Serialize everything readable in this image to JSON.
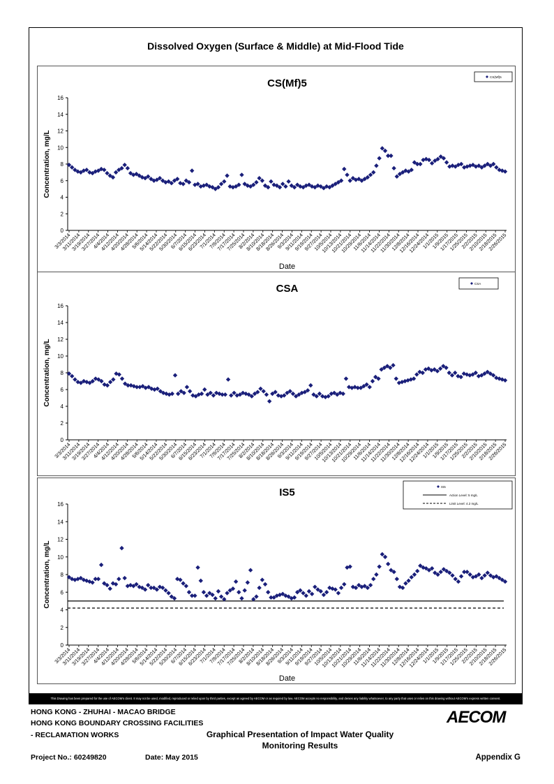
{
  "page_title": "Dissolved Oxygen (Surface & Middle) at Mid-Flood Tide",
  "disclaimer": "This Drawing has been prepared for the use of AECOM's client. It may not be used, modified, reproduced or relied upon by third parties, except as agreed by AECOM or as required by law. AECOM accepts no responsibility, and denies any liability whatsoever, to any party that uses or relies on this drawing without AECOM's express written consent.",
  "footer": {
    "project_line1": "HONG KONG - ZHUHAI - MACAO BRIDGE",
    "project_line2": "HONG KONG BOUNDARY CROSSING FACILITIES",
    "project_line3": "- RECLAMATION WORKS",
    "title_line1": "Graphical Presentation of Impact Water Quality",
    "title_line2": "Monitoring Results",
    "project_no": "Project No.: 60249820",
    "date": "Date: May 2015",
    "appendix": "Appendix G",
    "logo": "AECOM"
  },
  "colors": {
    "series": "#1a1f7a",
    "axis": "#000000"
  },
  "chart_data": [
    {
      "type": "scatter",
      "title": "CS(Mf)5",
      "xlabel": "Date",
      "ylabel": "Concentration, mg/L",
      "ylim": [
        0,
        16
      ],
      "yticks": [
        0,
        2,
        4,
        6,
        8,
        10,
        12,
        14,
        16
      ],
      "xticks": [
        "3/3/2014",
        "3/11/2014",
        "3/19/2014",
        "3/27/2014",
        "4/4/2014",
        "4/12/2014",
        "4/20/2014",
        "4/28/2014",
        "5/6/2014",
        "5/14/2014",
        "5/22/2014",
        "5/30/2014",
        "6/7/2014",
        "6/15/2014",
        "6/23/2014",
        "7/1/2014",
        "7/9/2014",
        "7/17/2014",
        "7/25/2014",
        "8/2/2014",
        "8/10/2014",
        "8/18/2014",
        "8/26/2014",
        "9/3/2014",
        "9/11/2014",
        "9/19/2014",
        "9/27/2014",
        "10/5/2014",
        "10/13/2014",
        "10/21/2014",
        "10/29/2014",
        "11/6/2014",
        "11/14/2014",
        "11/22/2014",
        "11/30/2014",
        "12/8/2014",
        "12/16/2014",
        "12/24/2014",
        "1/1/2015",
        "1/9/2015",
        "1/17/2015",
        "1/25/2015",
        "2/2/2015",
        "2/10/2015",
        "2/18/2015",
        "2/26/2015"
      ],
      "legend": [
        {
          "label": "CS(Mf)5",
          "marker": "diamond"
        }
      ],
      "legend_position": "top-right",
      "series": [
        {
          "name": "CS(Mf)5",
          "values": [
            7.9,
            7.6,
            7.3,
            7.1,
            7.0,
            7.2,
            7.3,
            7.0,
            6.9,
            7.1,
            7.2,
            7.4,
            7.3,
            6.9,
            6.6,
            6.4,
            7.0,
            7.3,
            7.5,
            7.9,
            7.5,
            6.9,
            6.7,
            6.8,
            6.6,
            6.4,
            6.3,
            6.5,
            6.2,
            6.0,
            6.1,
            6.3,
            6.0,
            5.8,
            5.9,
            5.7,
            6.0,
            6.2,
            5.7,
            5.6,
            6.0,
            5.8,
            7.2,
            5.5,
            5.6,
            5.3,
            5.4,
            5.5,
            5.3,
            5.2,
            5.0,
            5.2,
            5.6,
            5.9,
            6.6,
            5.3,
            5.2,
            5.3,
            5.5,
            6.7,
            5.6,
            5.4,
            5.3,
            5.5,
            5.8,
            6.3,
            6.0,
            5.4,
            5.2,
            5.9,
            5.5,
            5.4,
            5.2,
            5.6,
            5.3,
            5.9,
            5.4,
            5.2,
            5.5,
            5.3,
            5.2,
            5.4,
            5.5,
            5.3,
            5.2,
            5.4,
            5.3,
            5.1,
            5.3,
            5.2,
            5.4,
            5.6,
            5.8,
            6.0,
            7.4,
            6.7,
            6.0,
            6.3,
            6.1,
            6.2,
            6.0,
            6.2,
            6.4,
            6.7,
            7.0,
            7.8,
            8.7,
            9.9,
            9.6,
            9.0,
            9.0,
            7.5,
            6.5,
            6.8,
            7.0,
            7.2,
            7.1,
            7.3,
            8.2,
            8.0,
            8.0,
            8.5,
            8.6,
            8.5,
            8.1,
            8.4,
            8.6,
            8.9,
            8.7,
            8.2,
            7.7,
            7.8,
            7.7,
            7.9,
            8.0,
            7.6,
            7.7,
            7.8,
            7.9,
            7.7,
            7.8,
            7.6,
            7.8,
            8.0,
            7.8,
            8.0,
            7.6,
            7.3,
            7.2,
            7.1
          ]
        }
      ]
    },
    {
      "type": "scatter",
      "title": "CSA",
      "xlabel": "",
      "ylabel": "Concentration, mg/L",
      "ylim": [
        0,
        16
      ],
      "yticks": [
        0,
        2,
        4,
        6,
        8,
        10,
        12,
        14,
        16
      ],
      "xticks": [
        "3/3/2014",
        "3/11/2014",
        "3/19/2014",
        "3/27/2014",
        "4/4/2014",
        "4/12/2014",
        "4/20/2014",
        "4/28/2014",
        "5/6/2014",
        "5/14/2014",
        "5/22/2014",
        "5/30/2014",
        "6/7/2014",
        "6/15/2014",
        "6/23/2014",
        "7/1/2014",
        "7/9/2014",
        "7/17/2014",
        "7/25/2014",
        "8/2/2014",
        "8/10/2014",
        "8/18/2014",
        "8/26/2014",
        "9/3/2014",
        "9/11/2014",
        "9/19/2014",
        "9/27/2014",
        "10/5/2014",
        "10/13/2014",
        "10/21/2014",
        "10/29/2014",
        "11/6/2014",
        "11/14/2014",
        "11/22/2014",
        "11/30/2014",
        "12/8/2014",
        "12/16/2014",
        "12/24/2014",
        "1/1/2015",
        "1/9/2015",
        "1/17/2015",
        "1/25/2015",
        "2/2/2015",
        "2/10/2015",
        "2/18/2015",
        "2/26/2015"
      ],
      "legend": [
        {
          "label": "CSA",
          "marker": "diamond"
        }
      ],
      "legend_position": "top-right",
      "series": [
        {
          "name": "CSA",
          "values": [
            7.9,
            7.6,
            7.2,
            6.9,
            6.8,
            7.0,
            6.9,
            6.8,
            7.0,
            7.3,
            7.2,
            7.0,
            6.6,
            6.5,
            6.9,
            7.2,
            7.9,
            7.8,
            7.3,
            6.7,
            6.5,
            6.5,
            6.4,
            6.3,
            6.3,
            6.4,
            6.2,
            6.3,
            6.1,
            6.0,
            6.1,
            5.8,
            5.6,
            5.5,
            5.4,
            5.5,
            7.7,
            5.5,
            5.8,
            5.6,
            6.3,
            5.8,
            5.3,
            5.2,
            5.4,
            5.5,
            6.0,
            5.4,
            5.6,
            5.3,
            5.6,
            5.5,
            5.4,
            5.4,
            7.2,
            5.3,
            5.6,
            5.3,
            5.4,
            5.6,
            5.5,
            5.4,
            5.2,
            5.5,
            5.7,
            6.1,
            5.8,
            5.4,
            4.6,
            5.5,
            5.7,
            5.3,
            5.2,
            5.3,
            5.6,
            5.8,
            5.5,
            5.2,
            5.4,
            5.6,
            5.7,
            5.9,
            6.5,
            5.4,
            5.2,
            5.5,
            5.2,
            5.1,
            5.2,
            5.5,
            5.6,
            5.4,
            5.6,
            5.5,
            7.3,
            6.3,
            6.2,
            6.3,
            6.2,
            6.2,
            6.4,
            6.6,
            6.3,
            7.0,
            7.5,
            7.3,
            8.4,
            8.6,
            8.8,
            8.6,
            8.9,
            7.3,
            6.8,
            6.9,
            7.0,
            7.1,
            7.2,
            7.3,
            7.8,
            8.1,
            8.0,
            8.4,
            8.5,
            8.3,
            8.4,
            8.2,
            8.5,
            8.8,
            8.6,
            8.0,
            7.7,
            8.0,
            7.6,
            7.5,
            7.9,
            7.8,
            7.7,
            7.8,
            8.0,
            7.6,
            7.7,
            7.9,
            8.1,
            7.9,
            7.7,
            7.4,
            7.3,
            7.2,
            7.1
          ]
        }
      ]
    },
    {
      "type": "scatter",
      "title": "IS5",
      "xlabel": "Date",
      "ylabel": "Concentration, mg/L",
      "ylim": [
        0,
        16
      ],
      "yticks": [
        0,
        2,
        4,
        6,
        8,
        10,
        12,
        14,
        16
      ],
      "xticks": [
        "3/3/2014",
        "3/11/2014",
        "3/19/2014",
        "3/27/2014",
        "4/4/2014",
        "4/12/2014",
        "4/20/2014",
        "4/28/2014",
        "5/6/2014",
        "5/14/2014",
        "5/22/2014",
        "5/30/2014",
        "6/7/2014",
        "6/15/2014",
        "6/23/2014",
        "7/1/2014",
        "7/9/2014",
        "7/17/2014",
        "7/25/2014",
        "8/2/2014",
        "8/10/2014",
        "8/18/2014",
        "8/26/2014",
        "9/3/2014",
        "9/11/2014",
        "9/19/2014",
        "9/27/2014",
        "10/5/2014",
        "10/13/2014",
        "10/21/2014",
        "10/29/2014",
        "11/6/2014",
        "11/14/2014",
        "11/22/2014",
        "11/30/2014",
        "12/8/2014",
        "12/16/2014",
        "12/24/2014",
        "1/1/2015",
        "1/9/2015",
        "1/17/2015",
        "1/25/2015",
        "2/2/2015",
        "2/10/2015",
        "2/18/2015",
        "2/26/2015"
      ],
      "legend": [
        {
          "label": "IS5",
          "marker": "diamond"
        },
        {
          "label": "Action Level: 5 mg/L",
          "marker": "solid-line"
        },
        {
          "label": "Limit Level: 4.2 mg/L",
          "marker": "dashed-line"
        }
      ],
      "legend_position": "top-right",
      "reference_lines": [
        {
          "label": "Action Level: 5 mg/L",
          "value": 5,
          "style": "solid"
        },
        {
          "label": "Limit Level: 4.2 mg/L",
          "value": 4.2,
          "style": "dashed"
        }
      ],
      "series": [
        {
          "name": "IS5",
          "values": [
            7.7,
            7.5,
            7.4,
            7.5,
            7.6,
            7.4,
            7.3,
            7.2,
            7.1,
            7.5,
            7.5,
            9.1,
            7.0,
            6.8,
            6.4,
            7.0,
            6.9,
            7.5,
            11.0,
            7.6,
            6.7,
            6.8,
            6.7,
            6.9,
            6.6,
            6.5,
            6.3,
            6.8,
            6.5,
            6.5,
            6.3,
            6.6,
            6.5,
            6.2,
            5.9,
            5.5,
            5.3,
            7.5,
            7.4,
            7.0,
            6.7,
            6.0,
            5.6,
            5.6,
            8.8,
            7.3,
            6.0,
            5.6,
            5.9,
            5.7,
            5.3,
            6.1,
            5.5,
            5.2,
            5.9,
            6.2,
            6.4,
            7.2,
            6.0,
            5.3,
            6.2,
            7.1,
            8.5,
            5.2,
            5.5,
            6.5,
            7.4,
            6.9,
            6.0,
            5.4,
            5.4,
            5.6,
            5.7,
            5.8,
            5.6,
            5.5,
            5.3,
            5.4,
            6.0,
            6.2,
            5.9,
            5.6,
            6.1,
            5.8,
            6.6,
            6.3,
            6.1,
            5.7,
            6.0,
            6.5,
            6.4,
            6.3,
            5.9,
            6.5,
            6.9,
            8.8,
            8.9,
            6.6,
            6.5,
            6.8,
            6.6,
            6.7,
            6.5,
            6.8,
            7.5,
            8.0,
            8.9,
            10.3,
            10.0,
            9.2,
            8.5,
            8.3,
            7.5,
            6.6,
            6.5,
            7.0,
            7.3,
            7.7,
            8.0,
            8.4,
            9.0,
            8.8,
            8.7,
            8.5,
            8.7,
            8.2,
            8.0,
            8.3,
            8.6,
            8.4,
            8.2,
            7.9,
            7.5,
            7.2,
            7.8,
            8.3,
            8.3,
            8.0,
            7.7,
            7.8,
            8.0,
            7.6,
            7.9,
            8.2,
            7.9,
            7.7,
            7.8,
            7.6,
            7.4,
            7.2
          ]
        }
      ]
    }
  ]
}
